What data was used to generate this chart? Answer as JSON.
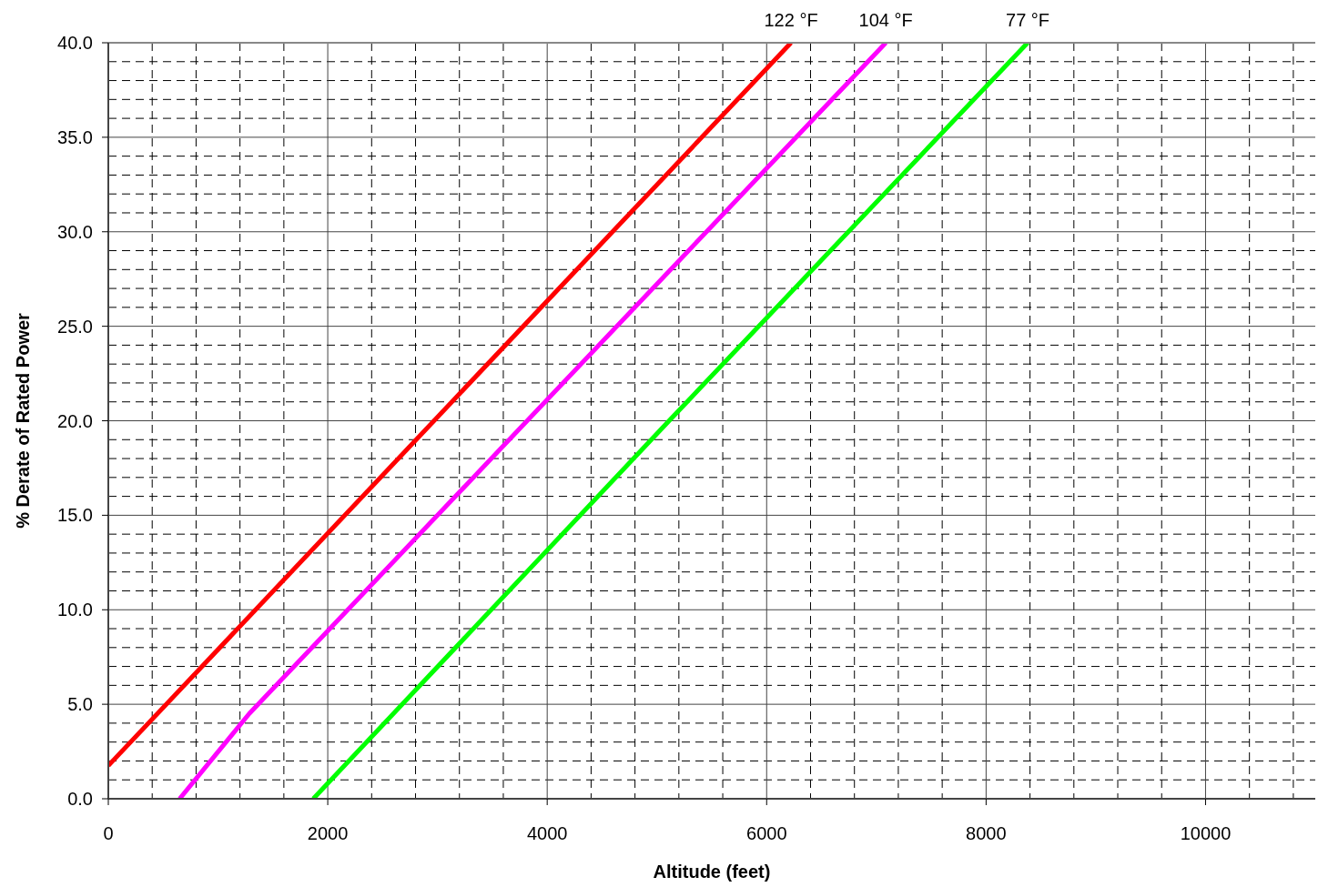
{
  "chart_data": {
    "type": "line",
    "xlabel": "Altitude (feet)",
    "ylabel": "% Derate of Rated Power",
    "xlim": [
      0,
      11000
    ],
    "xticks": [
      0,
      2000,
      4000,
      6000,
      8000,
      10000
    ],
    "ylim": [
      0,
      40
    ],
    "yticks": [
      {
        "value": 0,
        "label": "0.0"
      },
      {
        "value": 5,
        "label": "5.0"
      },
      {
        "value": 10,
        "label": "10.0"
      },
      {
        "value": 15,
        "label": "15.0"
      },
      {
        "value": 20,
        "label": "20.0"
      },
      {
        "value": 25,
        "label": "25.0"
      },
      {
        "value": 30,
        "label": "30.0"
      },
      {
        "value": 35,
        "label": "35.0"
      },
      {
        "value": 40,
        "label": "40.0"
      }
    ],
    "grid": true,
    "marker": "none",
    "line_style": "solid",
    "series": [
      {
        "name": "122 °F",
        "color": "#ff0000",
        "x": [
          0,
          6222
        ],
        "values": [
          1.75,
          40
        ]
      },
      {
        "name": "104 °F",
        "color": "#ff00ff",
        "x": [
          650,
          1284,
          7086
        ],
        "values": [
          0,
          4.5,
          40
        ]
      },
      {
        "name": "77 °F",
        "color": "#00ff00",
        "x": [
          1868,
          5111,
          8379
        ],
        "values": [
          0,
          20,
          40
        ]
      }
    ]
  }
}
